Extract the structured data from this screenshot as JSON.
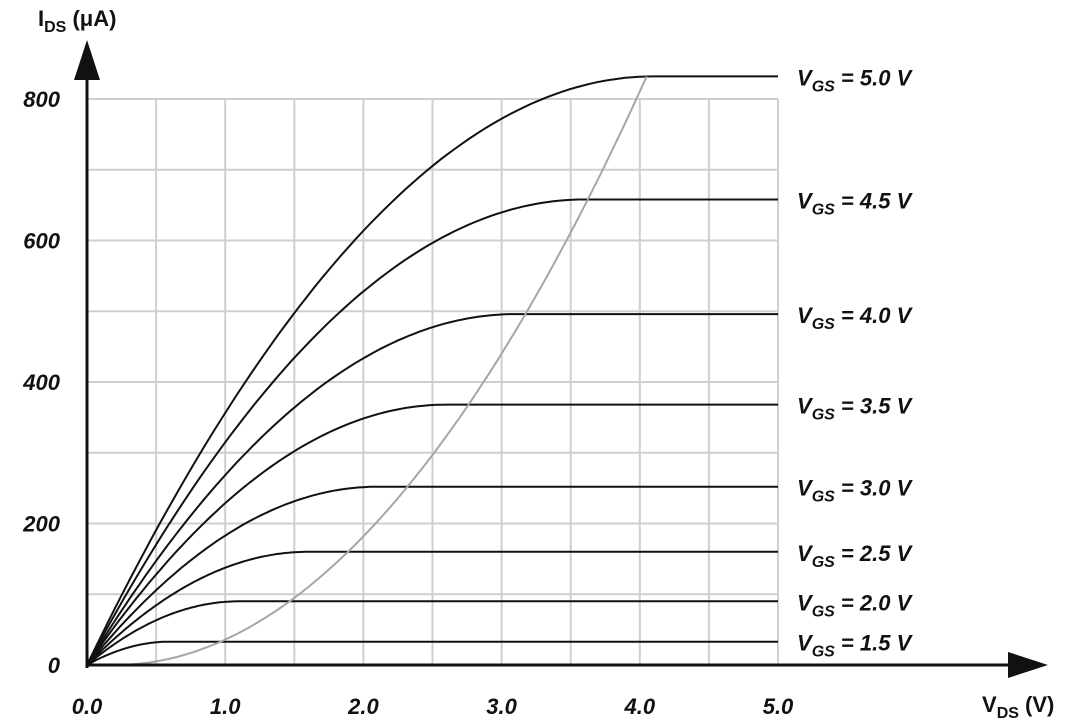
{
  "chart_data": {
    "type": "line",
    "xlabel": {
      "main": "V",
      "sub": "DS",
      "unit": " (V)"
    },
    "ylabel": {
      "main": "I",
      "sub": "DS",
      "unit": " (μA)"
    },
    "xlim": [
      0,
      5
    ],
    "ylim": [
      0,
      800
    ],
    "x_ticks": [
      {
        "value": 0,
        "label": "0.0"
      },
      {
        "value": 1,
        "label": "1.0"
      },
      {
        "value": 2,
        "label": "2.0"
      },
      {
        "value": 3,
        "label": "3.0"
      },
      {
        "value": 4,
        "label": "4.0"
      },
      {
        "value": 5,
        "label": "5.0"
      }
    ],
    "y_ticks": [
      {
        "value": 0,
        "label": "0"
      },
      {
        "value": 200,
        "label": "200"
      },
      {
        "value": 400,
        "label": "400"
      },
      {
        "value": 600,
        "label": "600"
      },
      {
        "value": 800,
        "label": "800"
      }
    ],
    "grid": true,
    "grid_step": {
      "x": 0.5,
      "y": 100
    },
    "threshold_voltage": 0.9,
    "series": [
      {
        "vgs": 1.5,
        "label_main": "V",
        "label_sub": "GS",
        "label_tail": " = 1.5 V",
        "saturation_current": 33
      },
      {
        "vgs": 2.0,
        "label_main": "V",
        "label_sub": "GS",
        "label_tail": " = 2.0 V",
        "saturation_current": 90
      },
      {
        "vgs": 2.5,
        "label_main": "V",
        "label_sub": "GS",
        "label_tail": " = 2.5 V",
        "saturation_current": 160
      },
      {
        "vgs": 3.0,
        "label_main": "V",
        "label_sub": "GS",
        "label_tail": " = 3.0 V",
        "saturation_current": 252
      },
      {
        "vgs": 3.5,
        "label_main": "V",
        "label_sub": "GS",
        "label_tail": " = 3.5 V",
        "saturation_current": 368
      },
      {
        "vgs": 4.0,
        "label_main": "V",
        "label_sub": "GS",
        "label_tail": " = 4.0 V",
        "saturation_current": 496
      },
      {
        "vgs": 4.5,
        "label_main": "V",
        "label_sub": "GS",
        "label_tail": " = 4.5 V",
        "saturation_current": 658
      },
      {
        "vgs": 5.0,
        "label_main": "V",
        "label_sub": "GS",
        "label_tail": " = 5.0 V",
        "saturation_current": 832
      }
    ],
    "saturation_boundary": {
      "x_start": 0.2,
      "x_end": 4.05
    }
  }
}
